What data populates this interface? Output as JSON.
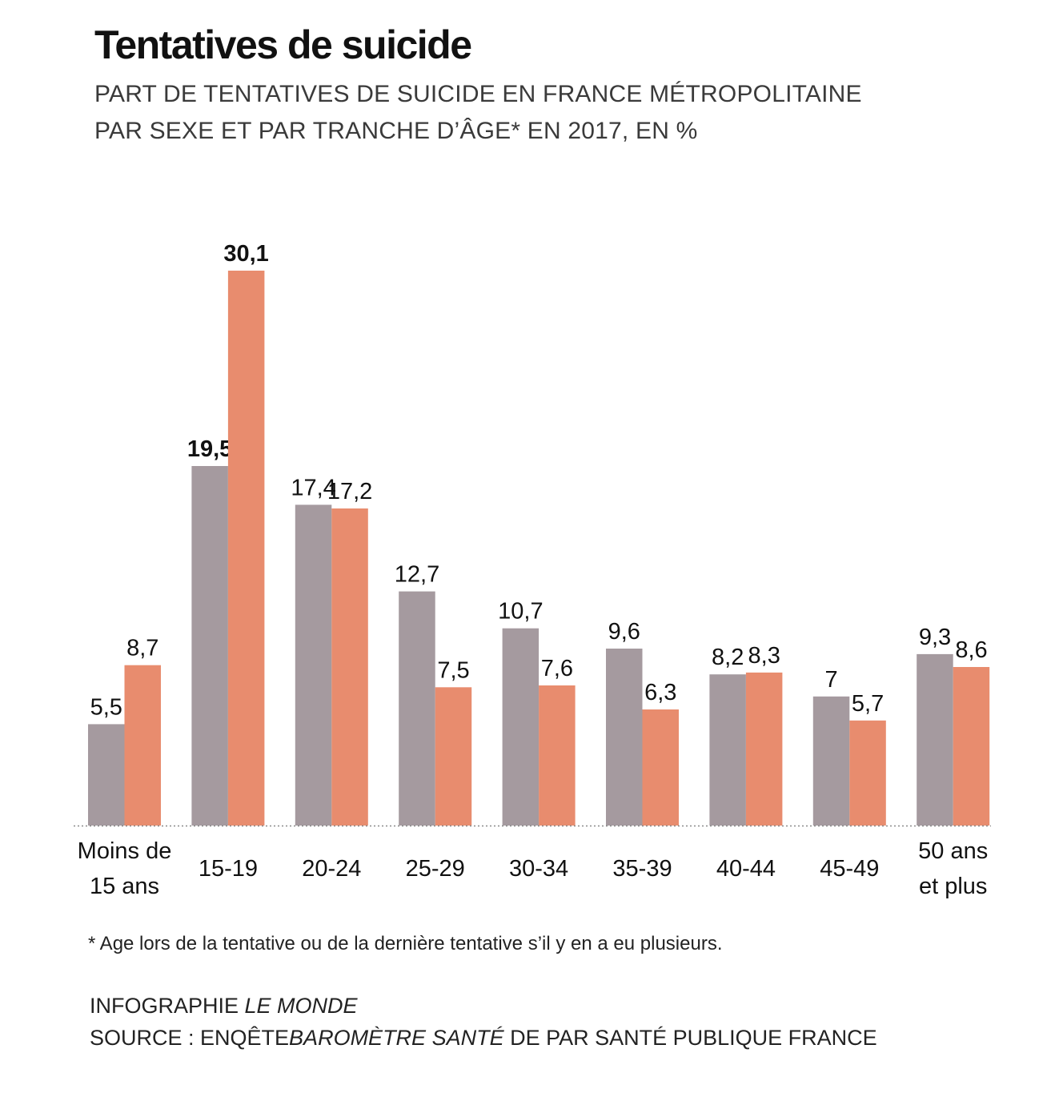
{
  "header": {
    "title": "Tentatives de suicide",
    "subtitle_line1": "PART DE TENTATIVES DE SUICIDE EN FRANCE MÉTROPOLITAINE",
    "subtitle_line2": "PAR SEXE ET PAR TRANCHE D’ÂGE* EN 2017, EN %"
  },
  "footer": {
    "footnote": "* Age lors de la tentative ou de la dernière tentative s’il y en a eu plusieurs.",
    "credit_prefix": "INFOGRAPHIE ",
    "credit_name": "LE MONDE",
    "source_prefix": "SOURCE : ENQÊTE",
    "source_name": "BAROMÈTRE SANTÉ",
    "source_suffix": " DE PAR SANTÉ PUBLIQUE FRANCE"
  },
  "chart_data": {
    "type": "bar",
    "categories": [
      [
        "Moins de",
        "15 ans"
      ],
      [
        "15-19"
      ],
      [
        "20-24"
      ],
      [
        "25-29"
      ],
      [
        "30-34"
      ],
      [
        "35-39"
      ],
      [
        "40-44"
      ],
      [
        "45-49"
      ],
      [
        "50 ans",
        "et plus"
      ]
    ],
    "series": [
      {
        "color": "#a59a9f",
        "values": [
          5.5,
          19.5,
          17.4,
          12.7,
          10.7,
          9.6,
          8.2,
          7,
          9.3
        ],
        "labels": [
          "5,5",
          "19,5",
          "17,4",
          "12,7",
          "10,7",
          "9,6",
          "8,2",
          "7",
          "9,3"
        ]
      },
      {
        "color": "#e88c6e",
        "values": [
          8.7,
          30.1,
          17.2,
          7.5,
          7.6,
          6.3,
          8.3,
          5.7,
          8.6
        ],
        "labels": [
          "8,7",
          "30,1",
          "17,2",
          "7,5",
          "7,6",
          "6,3",
          "8,3",
          "5,7",
          "8,6"
        ]
      }
    ],
    "bold_labels": [
      "19,5",
      "30,1"
    ],
    "ylim": [
      0,
      30.1
    ],
    "baseline": "dotted",
    "grid": false,
    "legend": "none"
  }
}
